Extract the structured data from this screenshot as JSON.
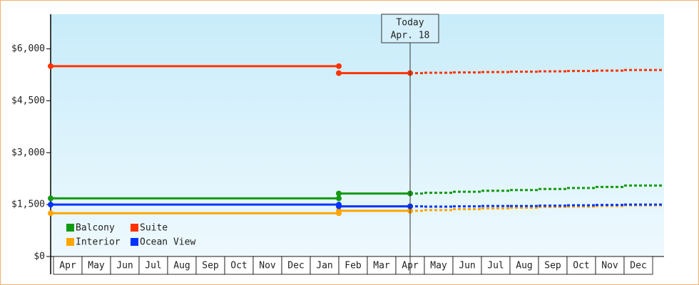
{
  "chart_data": {
    "type": "step-line",
    "categories": [
      "Apr",
      "May",
      "Jun",
      "Jul",
      "Aug",
      "Sep",
      "Oct",
      "Nov",
      "Dec",
      "Jan",
      "Feb",
      "Mar",
      "Apr",
      "May",
      "Jun",
      "Jul",
      "Aug",
      "Sep",
      "Oct",
      "Nov",
      "Dec"
    ],
    "series": [
      {
        "name": "Balcony",
        "color": "#139a13",
        "values": [
          1680,
          1680,
          1680,
          1680,
          1680,
          1680,
          1680,
          1680,
          1680,
          1680,
          1820,
          1820,
          1820,
          1840,
          1870,
          1900,
          1920,
          1950,
          1980,
          2010,
          2050
        ]
      },
      {
        "name": "Suite",
        "color": "#ff3300",
        "values": [
          5500,
          5500,
          5500,
          5500,
          5500,
          5500,
          5500,
          5500,
          5500,
          5500,
          5300,
          5300,
          5300,
          5310,
          5320,
          5330,
          5340,
          5350,
          5360,
          5370,
          5390
        ]
      },
      {
        "name": "Interior",
        "color": "#ffa500",
        "values": [
          1250,
          1250,
          1250,
          1250,
          1250,
          1250,
          1250,
          1250,
          1250,
          1250,
          1320,
          1320,
          1320,
          1340,
          1370,
          1390,
          1410,
          1430,
          1440,
          1460,
          1480
        ]
      },
      {
        "name": "Ocean View",
        "color": "#0033ff",
        "values": [
          1500,
          1500,
          1500,
          1500,
          1500,
          1500,
          1500,
          1500,
          1500,
          1500,
          1450,
          1450,
          1450,
          1440,
          1450,
          1460,
          1460,
          1470,
          1480,
          1490,
          1500
        ]
      }
    ],
    "annotation": {
      "category": 12,
      "lines": [
        "Today",
        "Apr. 18"
      ]
    },
    "ylim": [
      0,
      7000
    ],
    "yticks": [
      {
        "value": 0,
        "label": "$0"
      },
      {
        "value": 1500,
        "label": "$1,500"
      },
      {
        "value": 3000,
        "label": "$3,000"
      },
      {
        "value": 4500,
        "label": "$4,500"
      },
      {
        "value": 6000,
        "label": "$6,000"
      }
    ]
  }
}
